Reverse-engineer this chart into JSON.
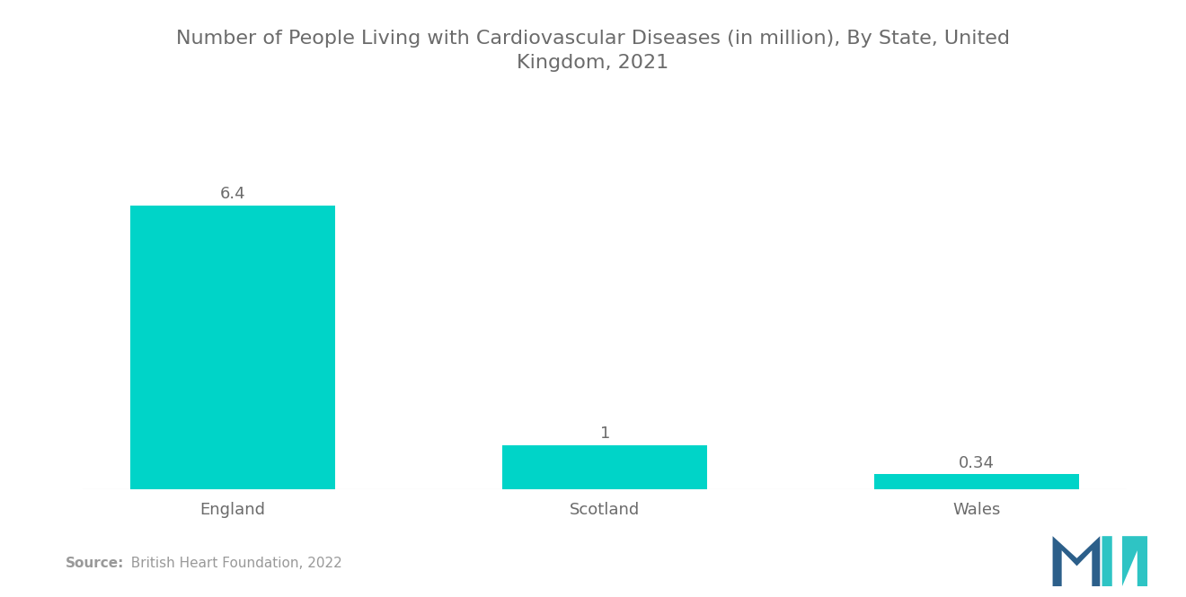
{
  "title": "Number of People Living with Cardiovascular Diseases (in million), By State, United\nKingdom, 2021",
  "categories": [
    "England",
    "Scotland",
    "Wales"
  ],
  "values": [
    6.4,
    1,
    0.34
  ],
  "bar_color": "#00D4C8",
  "background_color": "#ffffff",
  "title_fontsize": 16,
  "title_color": "#6b6b6b",
  "label_fontsize": 13,
  "value_fontsize": 13,
  "source_bold": "Source:",
  "source_normal": "  British Heart Foundation, 2022",
  "source_fontsize": 11,
  "source_color": "#999999",
  "ylim": [
    0,
    7.8
  ]
}
